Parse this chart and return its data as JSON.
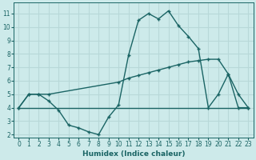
{
  "xlabel": "Humidex (Indice chaleur)",
  "background_color": "#cdeaea",
  "grid_color": "#b8d8d8",
  "line_color": "#1a6464",
  "xlim": [
    -0.5,
    23.5
  ],
  "ylim": [
    1.8,
    11.8
  ],
  "xticks": [
    0,
    1,
    2,
    3,
    4,
    5,
    6,
    7,
    8,
    9,
    10,
    11,
    12,
    13,
    14,
    15,
    16,
    17,
    18,
    19,
    20,
    21,
    22,
    23
  ],
  "yticks": [
    2,
    3,
    4,
    5,
    6,
    7,
    8,
    9,
    10,
    11
  ],
  "line1_x": [
    0,
    1,
    2,
    3,
    4,
    5,
    6,
    7,
    8,
    9,
    10,
    11,
    12,
    13,
    14,
    15,
    16,
    17,
    18,
    19,
    20,
    21,
    22,
    23
  ],
  "line1_y": [
    4.0,
    5.0,
    5.0,
    4.5,
    3.8,
    2.7,
    2.5,
    2.2,
    2.0,
    3.3,
    4.2,
    7.9,
    10.5,
    11.0,
    10.6,
    11.2,
    10.1,
    9.3,
    8.4,
    4.0,
    5.0,
    6.5,
    4.0,
    4.0
  ],
  "line2_x": [
    0,
    23
  ],
  "line2_y": [
    4.0,
    4.0
  ],
  "line3_x": [
    0,
    1,
    2,
    3,
    10,
    11,
    12,
    13,
    14,
    15,
    16,
    17,
    18,
    19,
    20,
    21,
    22,
    23
  ],
  "line3_y": [
    4.0,
    5.0,
    5.0,
    5.0,
    5.9,
    6.2,
    6.4,
    6.6,
    6.8,
    7.0,
    7.2,
    7.4,
    7.5,
    7.6,
    7.6,
    6.5,
    5.0,
    4.0
  ]
}
